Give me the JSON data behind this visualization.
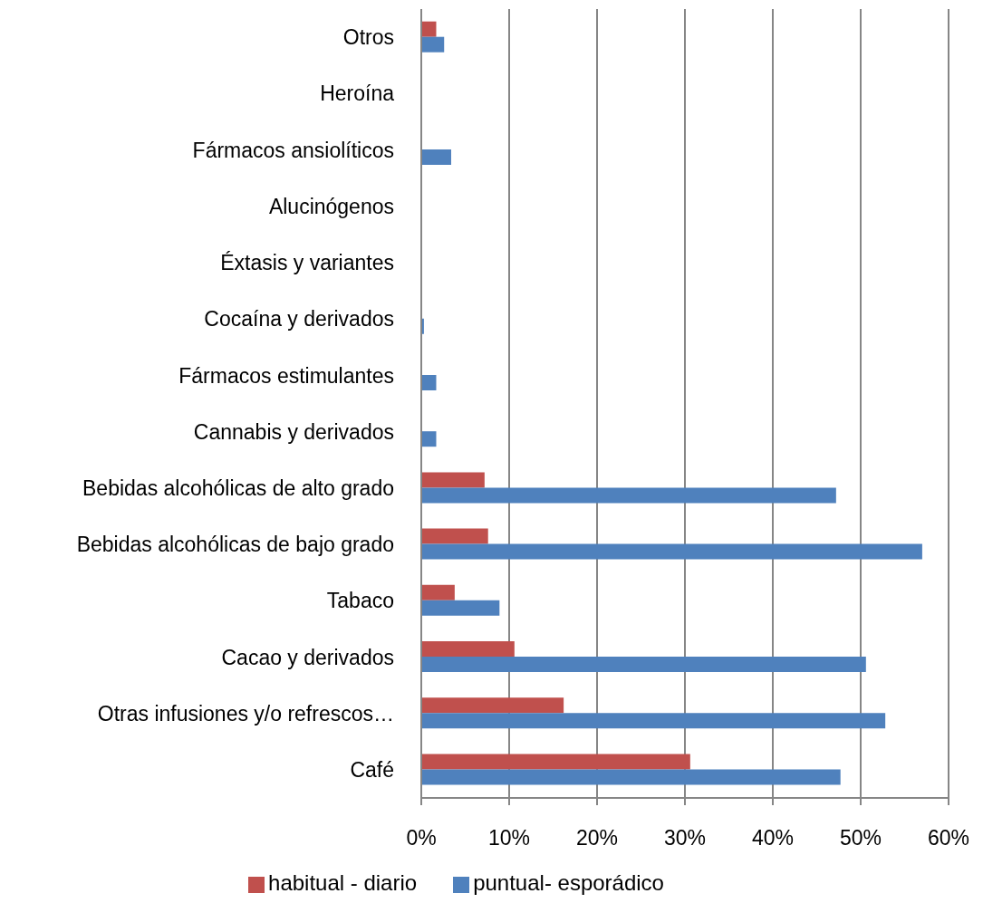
{
  "chart_data": {
    "type": "bar",
    "orientation": "horizontal",
    "categories": [
      "Otros",
      "Heroína",
      "Fármacos ansiolíticos",
      "Alucinógenos",
      "Éxtasis y variantes",
      "Cocaína y derivados",
      "Fármacos estimulantes",
      "Cannabis y derivados",
      "Bebidas alcohólicas de alto grado",
      "Bebidas alcohólicas de bajo grado",
      "Tabaco",
      "Cacao y derivados",
      "Otras infusiones y/o refrescos…",
      "Café"
    ],
    "series": [
      {
        "name": "habitual - diario",
        "color": "#c0504d",
        "values": [
          1.7,
          0,
          0,
          0,
          0,
          0,
          0,
          0,
          7.2,
          7.6,
          3.8,
          10.6,
          16.2,
          30.6
        ]
      },
      {
        "name": "puntual- esporádico",
        "color": "#4f81bd",
        "values": [
          2.6,
          0,
          3.4,
          0,
          0,
          0.3,
          1.7,
          1.7,
          47.2,
          57.0,
          8.9,
          50.6,
          52.8,
          47.7
        ]
      }
    ],
    "xlim": [
      0,
      60
    ],
    "xticks": [
      {
        "value": 0,
        "label": "0%"
      },
      {
        "value": 10,
        "label": "10%"
      },
      {
        "value": 20,
        "label": "20%"
      },
      {
        "value": 30,
        "label": "30%"
      },
      {
        "value": 40,
        "label": "40%"
      },
      {
        "value": 50,
        "label": "50%"
      },
      {
        "value": 60,
        "label": "60%"
      }
    ],
    "grid": "x",
    "legend": "bottom"
  }
}
